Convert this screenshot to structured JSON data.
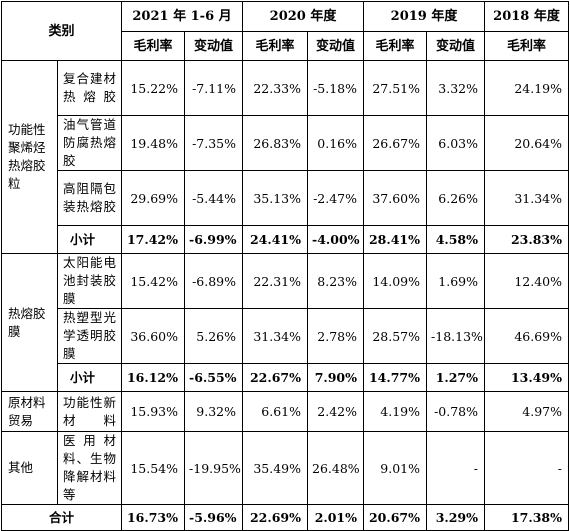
{
  "headers": {
    "category": "类别",
    "periods": [
      "2021 年 1-6 月",
      "2020 年度",
      "2019 年度",
      "2018 年度"
    ],
    "margin": "毛利率",
    "change": "变动值"
  },
  "groups": [
    {
      "name": "功能性聚烯烃热熔胶粒",
      "rows": [
        {
          "product": "复合建材热熔胶",
          "values": [
            "15.22%",
            "-7.11%",
            "22.33%",
            "-5.18%",
            "27.51%",
            "3.32%",
            "24.19%"
          ]
        },
        {
          "product": "油气管道防腐热熔胶",
          "values": [
            "19.48%",
            "-7.35%",
            "26.83%",
            "0.16%",
            "26.67%",
            "6.03%",
            "20.64%"
          ]
        },
        {
          "product": "高阻隔包装热熔胶",
          "values": [
            "29.69%",
            "-5.44%",
            "35.13%",
            "-2.47%",
            "37.60%",
            "6.26%",
            "31.34%"
          ]
        }
      ],
      "subtotal": {
        "label": "小计",
        "values": [
          "17.42%",
          "-6.99%",
          "24.41%",
          "-4.00%",
          "28.41%",
          "4.58%",
          "23.83%"
        ]
      }
    },
    {
      "name": "热熔胶膜",
      "rows": [
        {
          "product": "太阳能电池封装胶膜",
          "values": [
            "15.42%",
            "-6.89%",
            "22.31%",
            "8.23%",
            "14.09%",
            "1.69%",
            "12.40%"
          ]
        },
        {
          "product": "热塑型光学透明胶膜",
          "values": [
            "36.60%",
            "5.26%",
            "31.34%",
            "2.78%",
            "28.57%",
            "-18.13%",
            "46.69%"
          ]
        }
      ],
      "subtotal": {
        "label": "小计",
        "values": [
          "16.12%",
          "-6.55%",
          "22.67%",
          "7.90%",
          "14.77%",
          "1.27%",
          "13.49%"
        ]
      }
    },
    {
      "name": "原材料贸易",
      "rows": [
        {
          "product": "功能性新材料",
          "values": [
            "15.93%",
            "9.32%",
            "6.61%",
            "2.42%",
            "4.19%",
            "-0.78%",
            "4.97%"
          ]
        }
      ]
    },
    {
      "name": "其他",
      "rows": [
        {
          "product": "医用材料、生物降解材料等",
          "values": [
            "15.54%",
            "-19.95%",
            "35.49%",
            "26.48%",
            "9.01%",
            "-",
            "-"
          ]
        }
      ]
    }
  ],
  "total": {
    "label": "合计",
    "values": [
      "16.73%",
      "-5.96%",
      "22.69%",
      "2.01%",
      "20.67%",
      "3.29%",
      "17.38%"
    ]
  }
}
